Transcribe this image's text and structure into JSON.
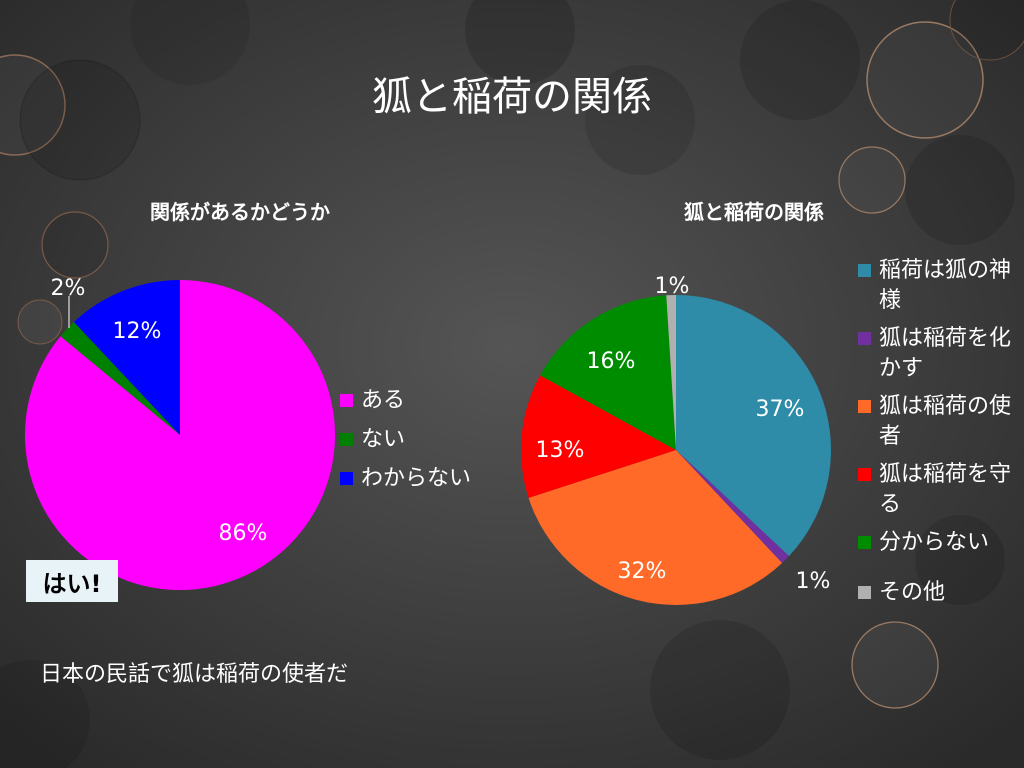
{
  "slide": {
    "title": "狐と稲荷の関係",
    "answer_box": "はい!",
    "caption": "日本の民話で狐は稲荷の使者だ"
  },
  "chart_data": [
    {
      "type": "pie",
      "title": "関係があるかどうか",
      "labels": [
        "ある",
        "ない",
        "わからない"
      ],
      "values": [
        86,
        2,
        12
      ],
      "value_labels": [
        "86%",
        "2%",
        "12%"
      ],
      "colors": [
        "#ff00ff",
        "#008000",
        "#0000ff"
      ],
      "legend_position": "right"
    },
    {
      "type": "pie",
      "title": "狐と稲荷の関係",
      "labels": [
        "稲荷は狐の神様",
        "狐は稲荷を化かす",
        "狐は稲荷の使者",
        "狐は稲荷を守る",
        "分からない",
        "その他"
      ],
      "values": [
        37,
        1,
        32,
        13,
        16,
        1
      ],
      "value_labels": [
        "37%",
        "1%",
        "32%",
        "13%",
        "16%",
        "1%"
      ],
      "colors": [
        "#2e8ca8",
        "#7030a0",
        "#ff6a28",
        "#ff0000",
        "#008c00",
        "#b0b0b0"
      ],
      "legend_position": "right"
    }
  ]
}
